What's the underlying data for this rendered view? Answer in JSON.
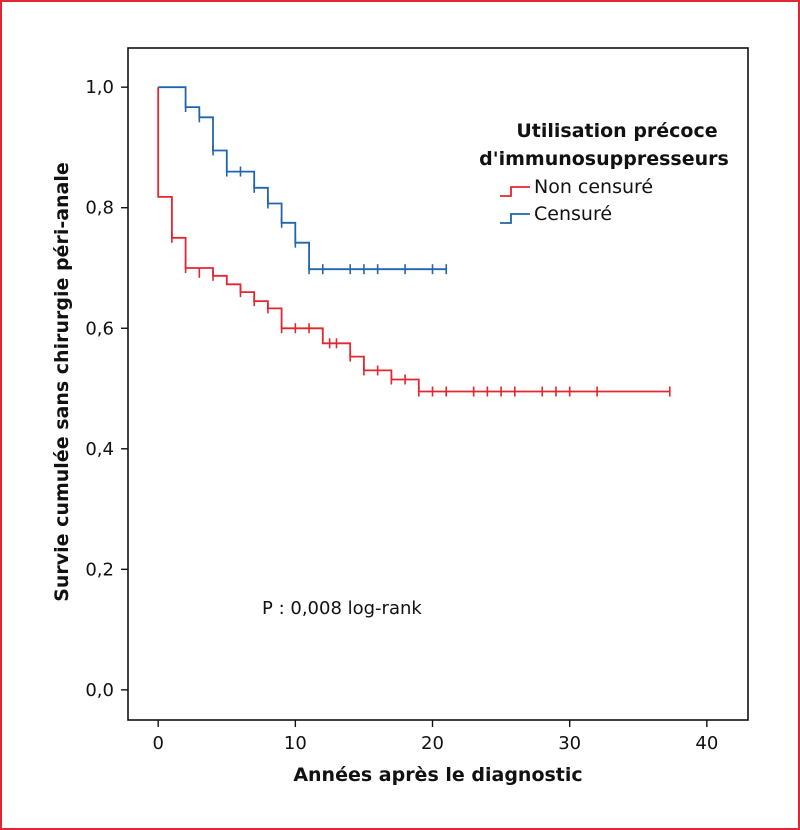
{
  "chart_data": {
    "type": "line",
    "xlabel": "Années après le diagnostic",
    "ylabel": "Survie cumulée sans chirurgie péri-anale",
    "xlim": [
      -2.2,
      43
    ],
    "ylim": [
      -0.05,
      1.065
    ],
    "x_ticks": [
      0,
      10,
      20,
      30,
      40
    ],
    "x_tick_labels": [
      "0",
      "10",
      "20",
      "30",
      "40"
    ],
    "y_ticks": [
      0.0,
      0.2,
      0.4,
      0.6,
      0.8,
      1.0
    ],
    "y_tick_labels": [
      "0,0",
      "0,2",
      "0,4",
      "0,6",
      "0,8",
      "1,0"
    ],
    "grid": false,
    "legend": {
      "title_lines": [
        "Utilisation précoce",
        "d'immunosuppresseurs"
      ],
      "position": "top-right"
    },
    "annotation": "P : 0,008 log-rank",
    "series": [
      {
        "name": "Non censuré",
        "color": "#e3262f",
        "steps": [
          [
            0,
            1.0
          ],
          [
            0,
            0.818
          ],
          [
            1,
            0.818
          ],
          [
            1,
            0.75
          ],
          [
            2,
            0.75
          ],
          [
            2,
            0.7
          ],
          [
            4,
            0.7
          ],
          [
            4,
            0.687
          ],
          [
            5,
            0.687
          ],
          [
            5,
            0.673
          ],
          [
            6,
            0.673
          ],
          [
            6,
            0.66
          ],
          [
            7,
            0.66
          ],
          [
            7,
            0.645
          ],
          [
            8,
            0.645
          ],
          [
            8,
            0.633
          ],
          [
            9,
            0.633
          ],
          [
            9,
            0.6
          ],
          [
            12,
            0.6
          ],
          [
            12,
            0.575
          ],
          [
            14,
            0.575
          ],
          [
            14,
            0.553
          ],
          [
            15,
            0.553
          ],
          [
            15,
            0.53
          ],
          [
            17,
            0.53
          ],
          [
            17,
            0.515
          ],
          [
            19,
            0.515
          ],
          [
            19,
            0.495
          ],
          [
            37.3,
            0.495
          ]
        ],
        "censors": [
          [
            1,
            0.75
          ],
          [
            2,
            0.7
          ],
          [
            3,
            0.692
          ],
          [
            4,
            0.687
          ],
          [
            6,
            0.66
          ],
          [
            7,
            0.645
          ],
          [
            8,
            0.633
          ],
          [
            9,
            0.6
          ],
          [
            10,
            0.6
          ],
          [
            11,
            0.6
          ],
          [
            12.5,
            0.575
          ],
          [
            13,
            0.575
          ],
          [
            14,
            0.553
          ],
          [
            15,
            0.53
          ],
          [
            16,
            0.53
          ],
          [
            17,
            0.515
          ],
          [
            18,
            0.515
          ],
          [
            19,
            0.495
          ],
          [
            20,
            0.495
          ],
          [
            21,
            0.495
          ],
          [
            23,
            0.495
          ],
          [
            24,
            0.495
          ],
          [
            25,
            0.495
          ],
          [
            26,
            0.495
          ],
          [
            28,
            0.495
          ],
          [
            29,
            0.495
          ],
          [
            30,
            0.495
          ],
          [
            32,
            0.495
          ],
          [
            37.3,
            0.495
          ]
        ]
      },
      {
        "name": "Censuré",
        "color": "#2166ac",
        "steps": [
          [
            0,
            1.0
          ],
          [
            2,
            1.0
          ],
          [
            2,
            0.967
          ],
          [
            3,
            0.967
          ],
          [
            3,
            0.95
          ],
          [
            4,
            0.95
          ],
          [
            4,
            0.895
          ],
          [
            5,
            0.895
          ],
          [
            5,
            0.86
          ],
          [
            7,
            0.86
          ],
          [
            7,
            0.833
          ],
          [
            8,
            0.833
          ],
          [
            8,
            0.807
          ],
          [
            9,
            0.807
          ],
          [
            9,
            0.775
          ],
          [
            10,
            0.775
          ],
          [
            10,
            0.742
          ],
          [
            11,
            0.742
          ],
          [
            11,
            0.698
          ],
          [
            21,
            0.698
          ]
        ],
        "censors": [
          [
            2,
            0.967
          ],
          [
            3,
            0.95
          ],
          [
            4,
            0.895
          ],
          [
            5,
            0.86
          ],
          [
            6,
            0.86
          ],
          [
            7,
            0.833
          ],
          [
            8,
            0.807
          ],
          [
            9,
            0.775
          ],
          [
            10,
            0.742
          ],
          [
            11,
            0.698
          ],
          [
            12,
            0.698
          ],
          [
            14,
            0.698
          ],
          [
            15,
            0.698
          ],
          [
            16,
            0.698
          ],
          [
            18,
            0.698
          ],
          [
            20,
            0.698
          ],
          [
            21,
            0.698
          ]
        ]
      }
    ]
  }
}
